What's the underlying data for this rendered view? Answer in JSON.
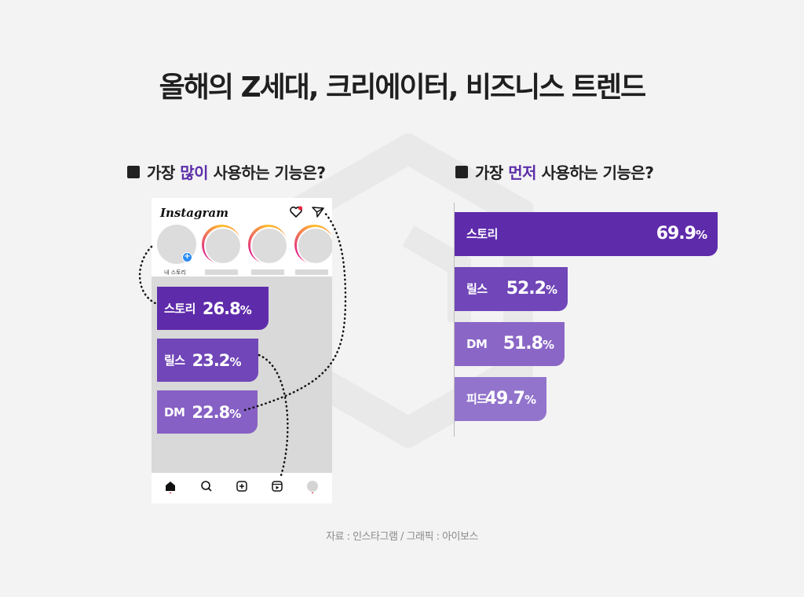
{
  "title": "올해의 Z세대, 크리에이터, 비즈니스 트렌드",
  "left_section": {
    "prefix": "가장",
    "highlight": "많이",
    "suffix": "사용하는 기능은?"
  },
  "right_section": {
    "prefix": "가장",
    "highlight": "먼저",
    "suffix": "사용하는 기능은?"
  },
  "phone": {
    "app_name": "Instagram",
    "my_story_label": "내 스토리",
    "icons": {
      "heart": "heart-icon",
      "send": "send-icon",
      "home": "home-icon",
      "search": "search-icon",
      "add": "add-post-icon",
      "reels": "reels-icon",
      "profile": "profile-avatar"
    },
    "notification_color": "#e8253c",
    "badge_color": "#2a8bf2"
  },
  "chart_data": [
    {
      "type": "bar",
      "orientation": "horizontal",
      "categories": [
        "스토리",
        "릴스",
        "DM"
      ],
      "values": [
        26.8,
        23.2,
        22.8
      ],
      "unit": "%",
      "colors": [
        "#5e2bab",
        "#7046b8",
        "#8660c4"
      ]
    },
    {
      "type": "bar",
      "orientation": "horizontal",
      "categories": [
        "스토리",
        "릴스",
        "DM",
        "피드"
      ],
      "values": [
        69.9,
        52.2,
        51.8,
        49.7
      ],
      "unit": "%",
      "colors": [
        "#5e2bab",
        "#7046b8",
        "#8a66c6",
        "#9274cc"
      ]
    }
  ],
  "source": "자료 : 인스타그램 / 그래픽 : 아이보스",
  "colors": {
    "accent": "#5b2ea8",
    "background": "#f3f3f4"
  }
}
